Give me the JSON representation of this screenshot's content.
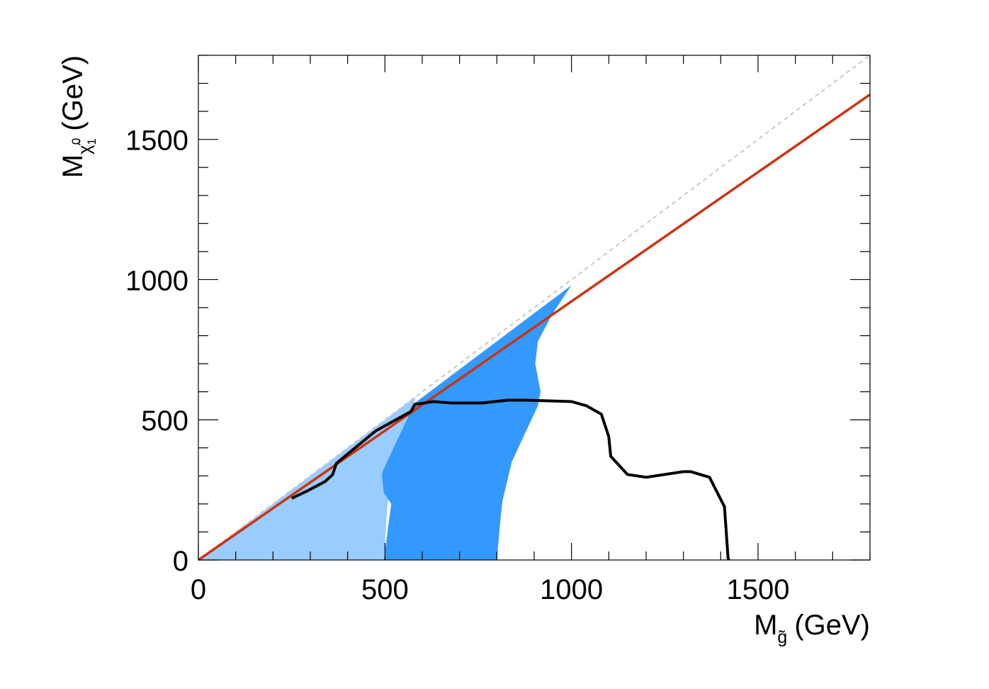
{
  "chart_data": {
    "type": "area",
    "title": "",
    "xlabel": {
      "main": "M",
      "sub": "g̃",
      "unit": "(GeV)"
    },
    "ylabel": {
      "main": "M",
      "sub": "χ̃",
      "sub_sup": "0",
      "sub_sub": "1",
      "unit": "(GeV)"
    },
    "xlim": [
      0,
      1800
    ],
    "ylim": [
      0,
      1800
    ],
    "x_ticks": [
      0,
      500,
      1000,
      1500
    ],
    "y_ticks": [
      0,
      500,
      1000,
      1500
    ],
    "x_tick_labels": [
      "0",
      "500",
      "1000",
      "1500"
    ],
    "y_tick_labels": [
      "0",
      "500",
      "1000",
      "1500"
    ],
    "grid": false,
    "legend": "none",
    "colors": {
      "light_band": "#99ccff",
      "dark_band": "#3399ff",
      "diagonal": "#c8c8c8",
      "red_line": "#cc3311",
      "black_line": "#000000",
      "axes": "#000000"
    },
    "series": [
      {
        "kind": "area",
        "color": "#99ccff",
        "x": [
          0,
          300,
          400,
          500,
          560,
          580,
          582,
          507,
          497,
          0
        ],
        "y": [
          0,
          300,
          400,
          500,
          560,
          580,
          580,
          200,
          0,
          0
        ]
      },
      {
        "kind": "area",
        "color": "#3399ff",
        "x": [
          497,
          507,
          517,
          497,
          492,
          495,
          580,
          700,
          800,
          900,
          1000,
          1052,
          1000,
          950,
          910,
          903,
          917,
          910,
          875,
          840,
          815,
          808,
          800,
          497
        ],
        "y": [
          0,
          100,
          200,
          240,
          300,
          320,
          560,
          680,
          780,
          880,
          980,
          1052,
          980,
          880,
          780,
          700,
          600,
          550,
          450,
          350,
          210,
          120,
          0,
          0
        ]
      },
      {
        "kind": "line",
        "color": "#c8c8c8",
        "dash": true,
        "x": [
          0,
          1800
        ],
        "y": [
          0,
          1800
        ]
      },
      {
        "kind": "line",
        "color": "#cc3311",
        "x": [
          0,
          1800
        ],
        "y": [
          0,
          1660
        ]
      },
      {
        "kind": "line",
        "color": "#000000",
        "x": [
          250,
          290,
          340,
          360,
          370,
          475,
          570,
          580,
          630,
          680,
          760,
          830,
          880,
          1000,
          1040,
          1080,
          1100,
          1105,
          1150,
          1200,
          1300,
          1320,
          1370,
          1410,
          1420,
          1425
        ],
        "y": [
          220,
          245,
          280,
          305,
          345,
          460,
          530,
          555,
          565,
          560,
          560,
          570,
          570,
          565,
          550,
          520,
          440,
          370,
          305,
          295,
          315,
          315,
          295,
          190,
          0,
          0
        ]
      }
    ]
  }
}
